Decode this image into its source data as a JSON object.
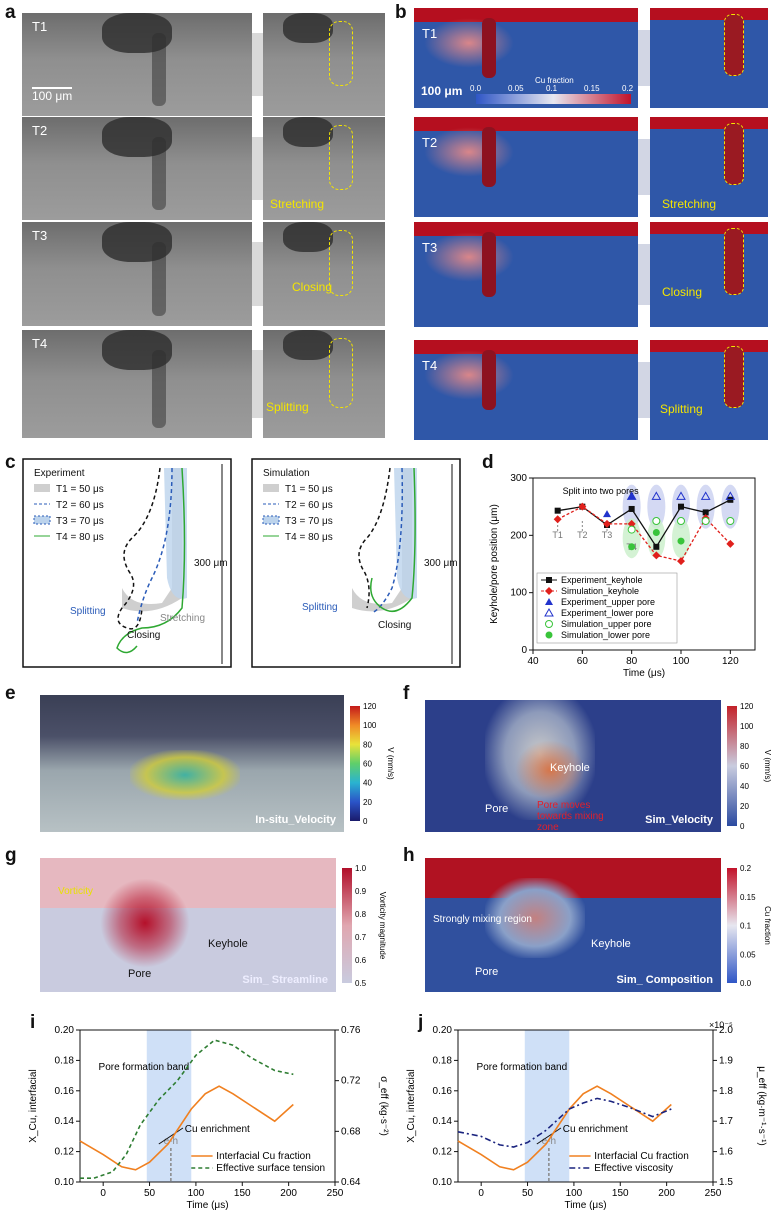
{
  "panel_labels": [
    "a",
    "b",
    "c",
    "d",
    "e",
    "f",
    "g",
    "h",
    "i",
    "j"
  ],
  "panel_a": {
    "times": [
      "T1",
      "T2",
      "T3",
      "T4"
    ],
    "scale_bar": "100 μm",
    "labels": [
      "Stretching",
      "Closing",
      "Splitting"
    ]
  },
  "panel_b": {
    "times": [
      "T1",
      "T2",
      "T3",
      "T4"
    ],
    "scale_bar": "100 μm",
    "colorbar_title": "Cu fraction",
    "colorbar_ticks": [
      "0.0",
      "0.05",
      "0.1",
      "0.15",
      "0.2"
    ],
    "labels": [
      "Stretching",
      "Closing",
      "Splitting"
    ]
  },
  "panel_c": {
    "left_title": "Experiment",
    "right_title": "Simulation",
    "legend": [
      "T1 = 50 μs",
      "T2 = 60 μs",
      "T3 = 70 μs",
      "T4 = 80 μs"
    ],
    "scale": "300 μm",
    "left_labels": [
      "Splitting",
      "Closing",
      "Stretching"
    ],
    "right_labels": [
      "Splitting",
      "Closing"
    ]
  },
  "panel_d": {
    "chart_data": {
      "type": "line",
      "xlabel": "Time (μs)",
      "ylabel": "Keyhole/pore position (μm)",
      "xlim": [
        40,
        130
      ],
      "ylim": [
        0,
        300
      ],
      "xticks": [
        40,
        60,
        80,
        100,
        120
      ],
      "yticks": [
        0,
        100,
        200,
        300
      ],
      "annotation": "Split into two pores",
      "time_marks": [
        "T1",
        "T2",
        "T3",
        "T4"
      ],
      "series": [
        {
          "name": "Experiment_keyhole",
          "x": [
            50,
            60,
            70,
            80,
            90,
            100,
            110,
            120
          ],
          "values": [
            243,
            250,
            218,
            246,
            180,
            250,
            240,
            262
          ]
        },
        {
          "name": "Simulation_keyhole",
          "x": [
            50,
            60,
            70,
            80,
            90,
            100,
            110,
            120
          ],
          "values": [
            228,
            250,
            220,
            220,
            165,
            155,
            230,
            185
          ]
        },
        {
          "name": "Experiment_upper pore",
          "x": [
            70,
            80
          ],
          "values": [
            237,
            268
          ]
        },
        {
          "name": "Experiment_lower pore",
          "x": [
            80,
            90,
            100,
            110,
            120
          ],
          "values": [
            268,
            268,
            268,
            268,
            268
          ]
        },
        {
          "name": "Simulation_upper pore",
          "x": [
            80,
            90,
            100,
            110,
            120
          ],
          "values": [
            210,
            225,
            225,
            225,
            225
          ]
        },
        {
          "name": "Simulation_lower pore",
          "x": [
            80,
            90,
            100
          ],
          "values": [
            180,
            205,
            190
          ]
        }
      ]
    }
  },
  "panel_e": {
    "caption": "In-situ_Velocity",
    "colorbar_title": "V (mm/s)",
    "colorbar_ticks": [
      "0",
      "20",
      "40",
      "60",
      "80",
      "100",
      "120"
    ]
  },
  "panel_f": {
    "caption": "Sim_Velocity",
    "colorbar_title": "V (mm/s)",
    "colorbar_ticks": [
      "0",
      "20",
      "40",
      "60",
      "80",
      "100",
      "120"
    ],
    "labels": [
      "Keyhole",
      "Pore",
      "Pore moves towards mixing zone"
    ]
  },
  "panel_g": {
    "caption": "Sim_ Streamline",
    "colorbar_title": "Vorticity magnitude",
    "colorbar_ticks": [
      "0.5",
      "0.6",
      "0.7",
      "0.8",
      "0.9",
      "1.0"
    ],
    "labels": [
      "Keyhole",
      "Pore",
      "Vorticity"
    ]
  },
  "panel_h": {
    "caption": "Sim_ Composition",
    "colorbar_title": "Cu fraction",
    "colorbar_ticks": [
      "0.0",
      "0.05",
      "0.1",
      "0.15",
      "0.2"
    ],
    "labels": [
      "Strongly mixing region",
      "Keyhole",
      "Pore"
    ]
  },
  "panel_i": {
    "chart_data": {
      "type": "line",
      "xlabel": "Time (μs)",
      "ylabel": "X_Cu, interfacial",
      "ylabel2": "σ_eff (kg·s⁻²)",
      "xlim": [
        -25,
        250
      ],
      "ylim": [
        0.1,
        0.2
      ],
      "ylim2": [
        0.64,
        0.76
      ],
      "xticks": [
        0,
        50,
        100,
        150,
        200,
        250
      ],
      "yticks": [
        0.1,
        0.12,
        0.14,
        0.16,
        0.18,
        0.2
      ],
      "yticks2": [
        0.64,
        0.68,
        0.72,
        0.76
      ],
      "band": [
        47,
        95
      ],
      "band_label": "Pore formation band",
      "marker": "e-h",
      "marker_x": 73,
      "annotation": "Cu enrichment",
      "series": [
        {
          "name": "Interfacial Cu fraction",
          "axis": "left",
          "x": [
            -25,
            0,
            20,
            35,
            50,
            70,
            95,
            110,
            125,
            140,
            160,
            185,
            205
          ],
          "values": [
            0.127,
            0.118,
            0.11,
            0.108,
            0.113,
            0.125,
            0.148,
            0.158,
            0.163,
            0.158,
            0.15,
            0.14,
            0.151
          ]
        },
        {
          "name": "Effective surface tension",
          "axis": "right",
          "x": [
            -25,
            -10,
            10,
            25,
            40,
            60,
            80,
            100,
            120,
            140,
            160,
            185,
            205
          ],
          "values": [
            0.643,
            0.643,
            0.648,
            0.662,
            0.685,
            0.705,
            0.72,
            0.74,
            0.752,
            0.748,
            0.738,
            0.728,
            0.725
          ]
        }
      ]
    }
  },
  "panel_j": {
    "chart_data": {
      "type": "line",
      "xlabel": "Time (μs)",
      "ylabel": "X_Cu, interfacial",
      "ylabel2": "μ_eff (kg·m⁻¹·s⁻¹)",
      "y2_multiplier": "×10⁻⁵",
      "xlim": [
        -25,
        250
      ],
      "ylim": [
        0.1,
        0.2
      ],
      "ylim2": [
        1.5,
        2.0
      ],
      "xticks": [
        0,
        50,
        100,
        150,
        200,
        250
      ],
      "yticks": [
        0.1,
        0.12,
        0.14,
        0.16,
        0.18,
        0.2
      ],
      "yticks2": [
        1.5,
        1.6,
        1.7,
        1.8,
        1.9,
        2.0
      ],
      "band": [
        47,
        95
      ],
      "band_label": "Pore formation band",
      "marker": "e-h",
      "marker_x": 73,
      "annotation": "Cu enrichment",
      "series": [
        {
          "name": "Interfacial Cu fraction",
          "axis": "left",
          "x": [
            -25,
            0,
            20,
            35,
            50,
            70,
            95,
            110,
            125,
            140,
            160,
            185,
            205
          ],
          "values": [
            0.127,
            0.118,
            0.11,
            0.108,
            0.113,
            0.125,
            0.148,
            0.158,
            0.163,
            0.158,
            0.15,
            0.14,
            0.151
          ]
        },
        {
          "name": "Effective viscosity",
          "axis": "right",
          "x": [
            -25,
            0,
            20,
            35,
            50,
            70,
            95,
            110,
            125,
            140,
            160,
            185,
            205
          ],
          "values": [
            1.665,
            1.65,
            1.622,
            1.615,
            1.63,
            1.67,
            1.74,
            1.76,
            1.775,
            1.765,
            1.745,
            1.715,
            1.74
          ]
        }
      ]
    }
  }
}
